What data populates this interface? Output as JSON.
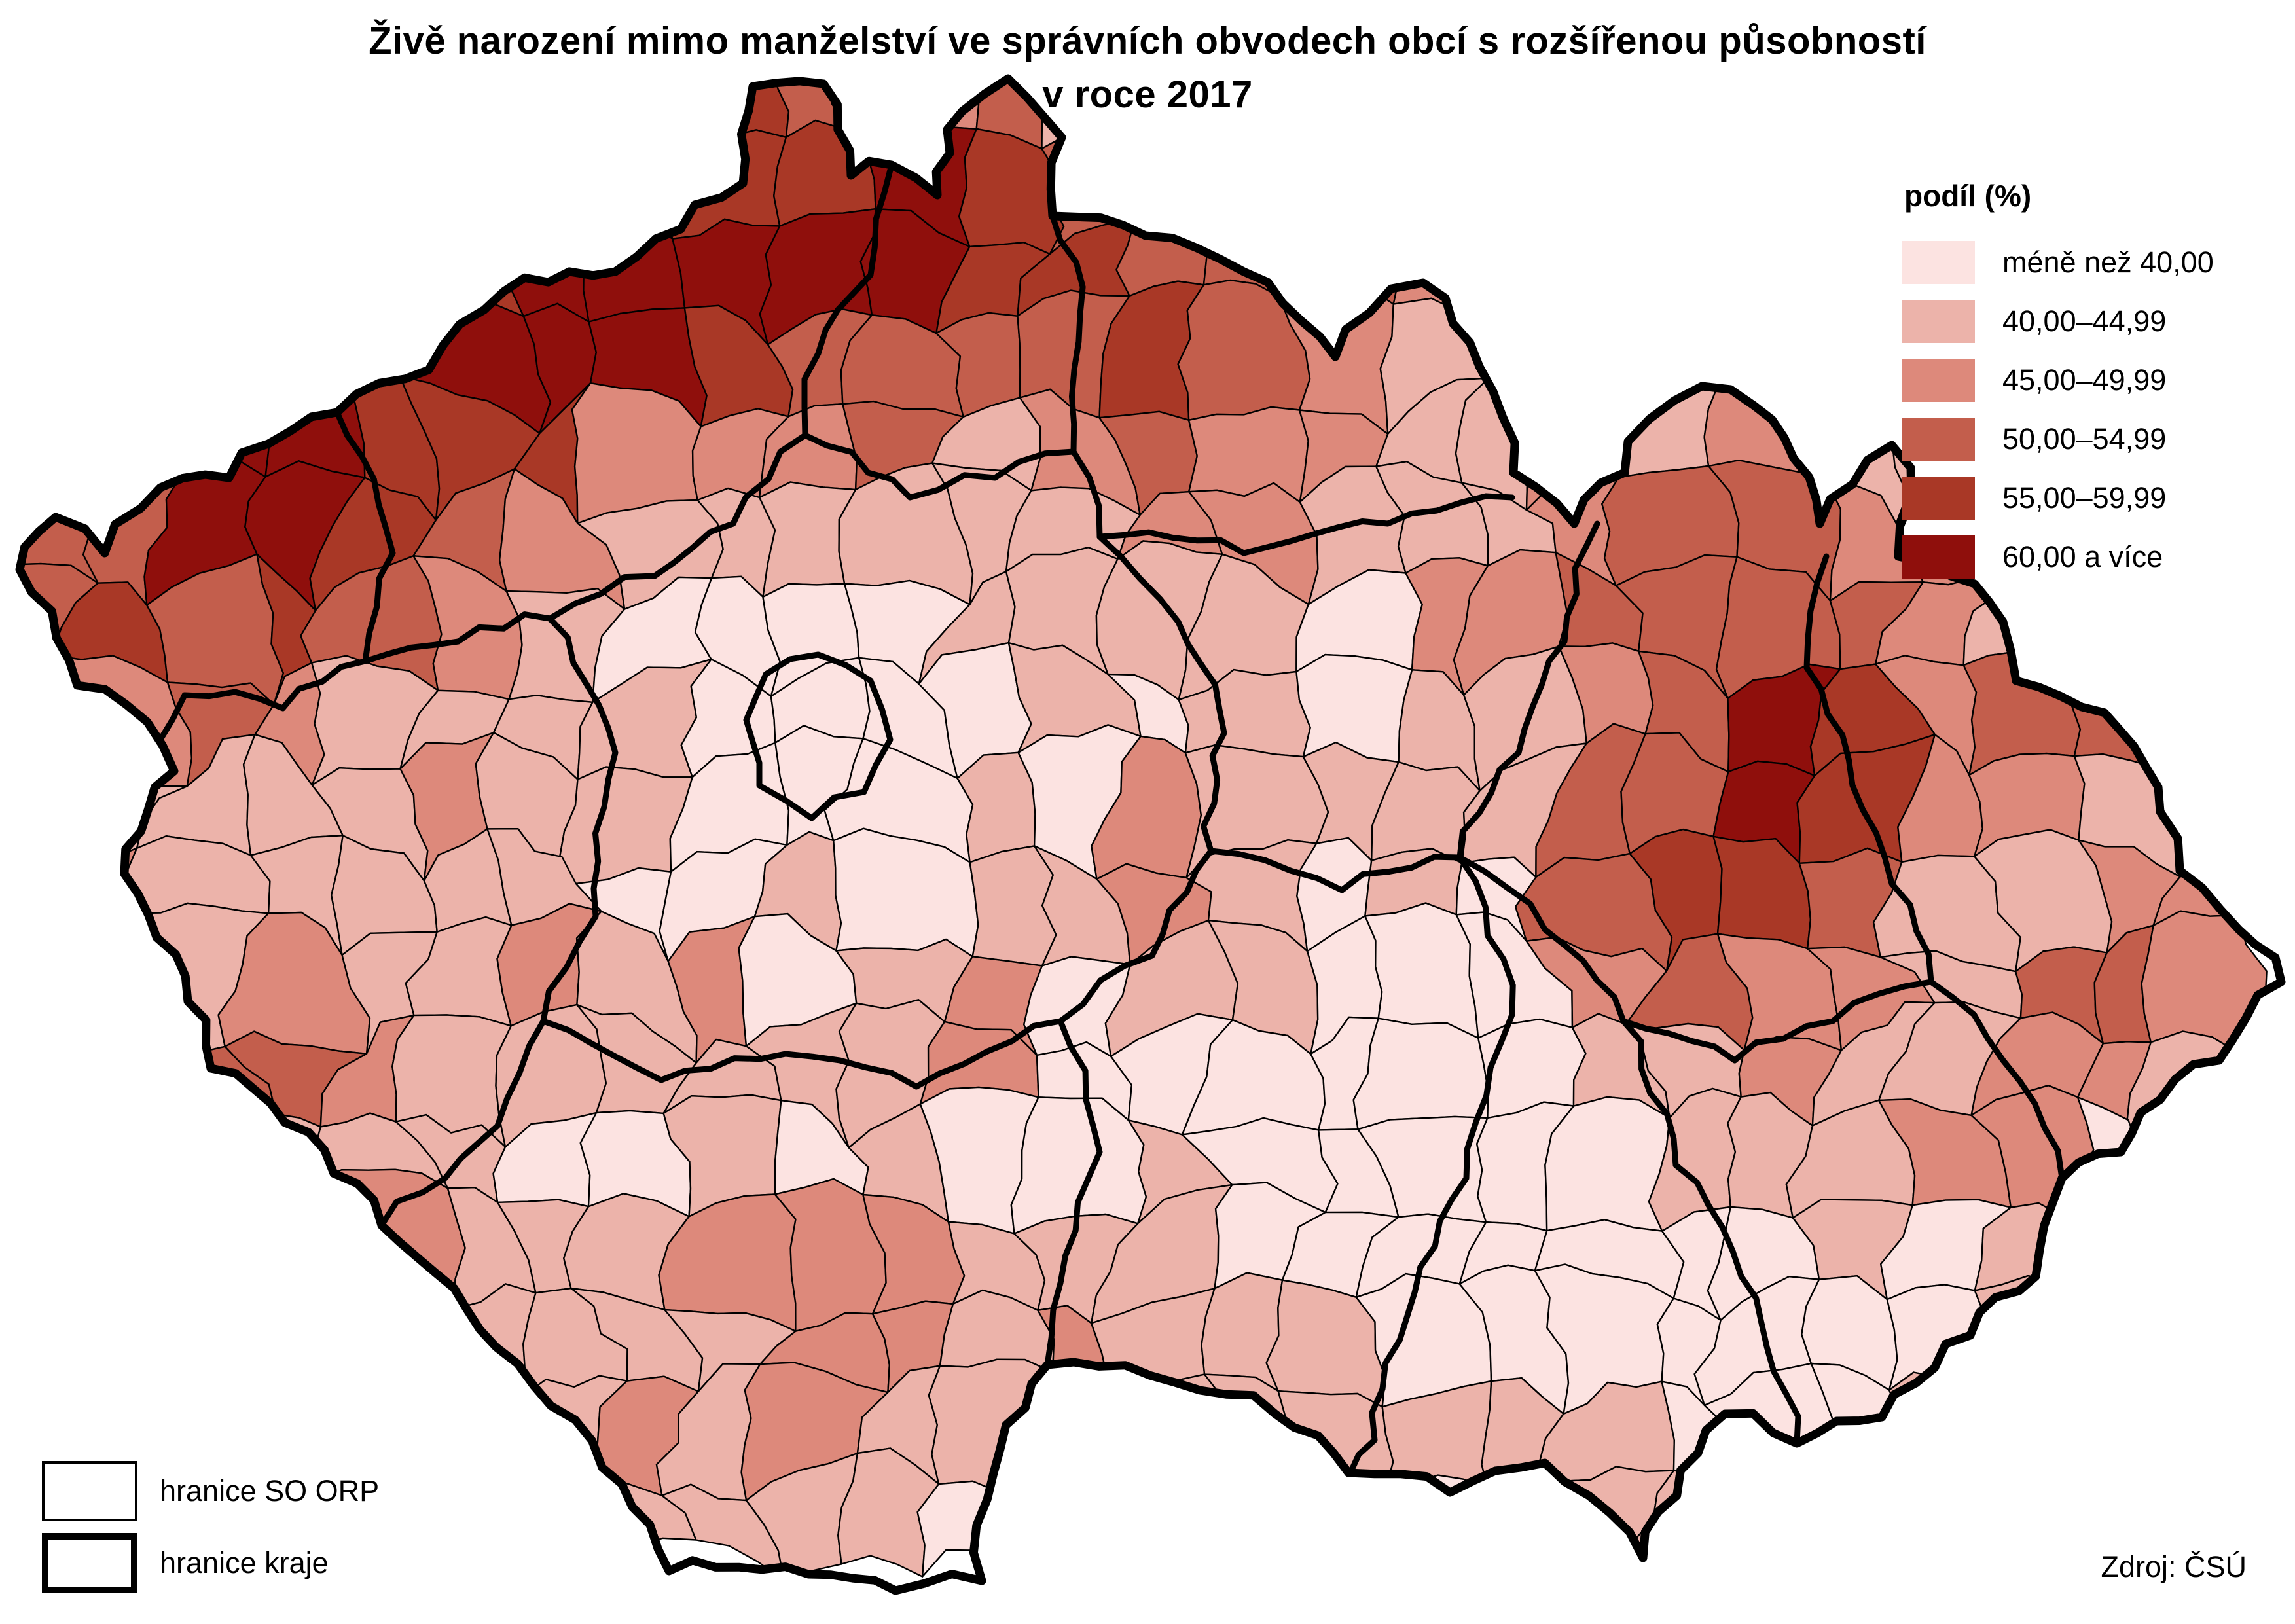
{
  "title": {
    "line1": "Živě narození mimo manželství ve správních obvodech obcí s rozšířenou působností",
    "line2": "v roce 2017"
  },
  "legend": {
    "title": "podíl (%)",
    "items": [
      {
        "label": "méně než 40,00",
        "color": "#fce3e1"
      },
      {
        "label": "40,00–44,99",
        "color": "#ecb3aa"
      },
      {
        "label": "45,00–49,99",
        "color": "#dd897b"
      },
      {
        "label": "50,00–54,99",
        "color": "#c35e4c"
      },
      {
        "label": "55,00–59,99",
        "color": "#a93826"
      },
      {
        "label": "60,00 a více",
        "color": "#8f0f0c"
      }
    ]
  },
  "boundary_legend": {
    "items": [
      {
        "label": "hranice SO ORP",
        "style": "thin"
      },
      {
        "label": "hranice kraje",
        "style": "thick"
      }
    ]
  },
  "source": "Zdroj: ČSÚ",
  "map": {
    "country": "Česko",
    "orp_border_color": "#000000",
    "kraj_border_color": "#000000",
    "outline_color": "#000000",
    "background_color": "#ffffff"
  }
}
